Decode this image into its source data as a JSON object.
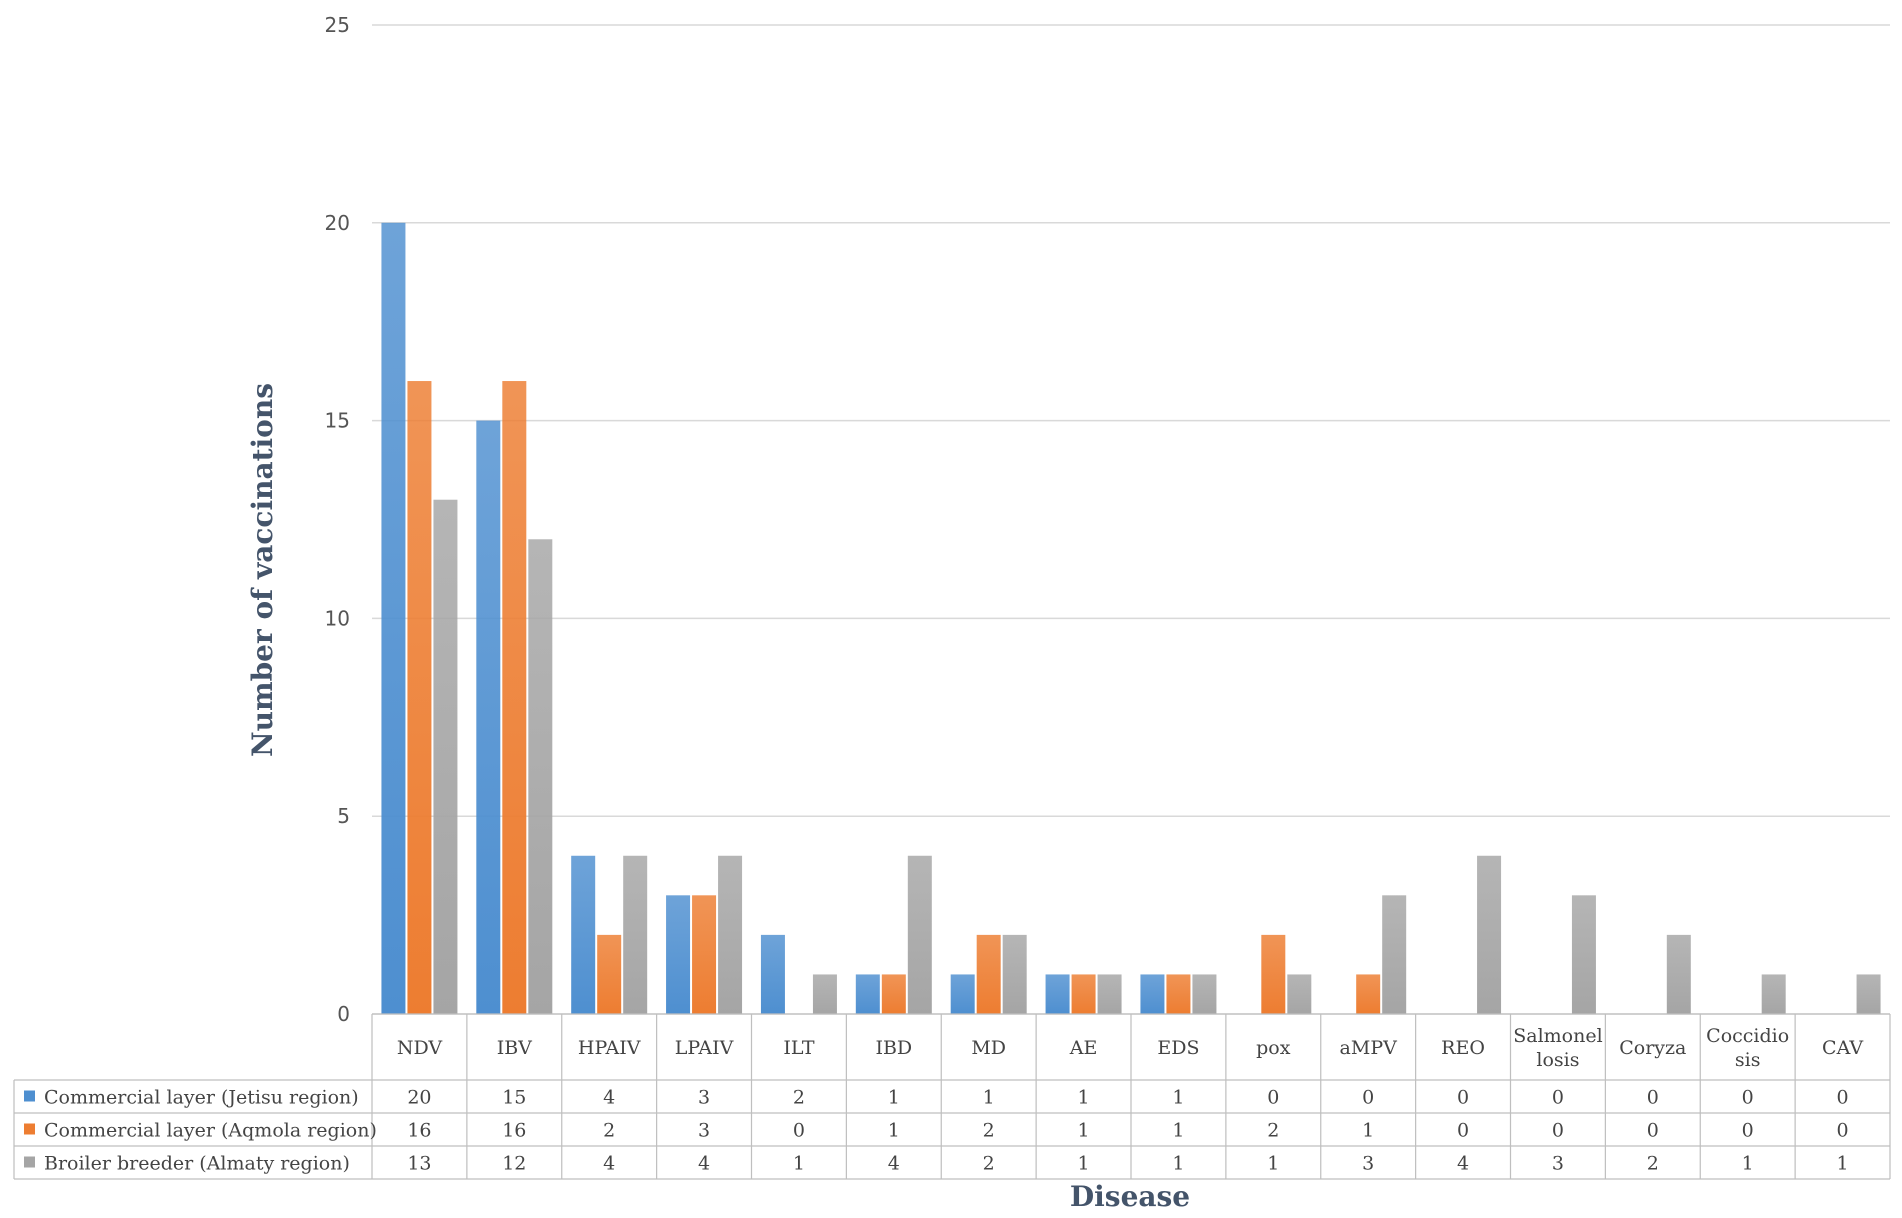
{
  "chart_data": {
    "type": "bar",
    "xlabel": "Disease",
    "ylabel": "Number of vaccinations",
    "ylim": [
      0,
      25
    ],
    "yticks": [
      0,
      5,
      10,
      15,
      20,
      25
    ],
    "grid": true,
    "legend_placement": "data-table-left",
    "categories": [
      "NDV",
      "IBV",
      "HPAIV",
      "LPAIV",
      "ILT",
      "IBD",
      "MD",
      "AE",
      "EDS",
      "pox",
      "aMPV",
      "REO",
      "Salmonel losis",
      "Coryza",
      "Coccidio sis",
      "CAV"
    ],
    "category_lines": [
      [
        "NDV"
      ],
      [
        "IBV"
      ],
      [
        "HPAIV"
      ],
      [
        "LPAIV"
      ],
      [
        "ILT"
      ],
      [
        "IBD"
      ],
      [
        "MD"
      ],
      [
        "AE"
      ],
      [
        "EDS"
      ],
      [
        "pox"
      ],
      [
        "aMPV"
      ],
      [
        "REO"
      ],
      [
        "Salmonel",
        "losis"
      ],
      [
        "Coryza"
      ],
      [
        "Coccidio",
        "sis"
      ],
      [
        "CAV"
      ]
    ],
    "series": [
      {
        "name": "Commercial layer (Jetisu region)",
        "color": "#4e8fd0",
        "values": [
          20,
          15,
          4,
          3,
          2,
          1,
          1,
          1,
          1,
          0,
          0,
          0,
          0,
          0,
          0,
          0
        ]
      },
      {
        "name": "Commercial layer (Aqmola region)",
        "color": "#ed7d31",
        "values": [
          16,
          16,
          2,
          3,
          0,
          1,
          2,
          1,
          1,
          2,
          1,
          0,
          0,
          0,
          0,
          0
        ]
      },
      {
        "name": "Broiler breeder (Almaty region)",
        "color": "#a5a5a5",
        "values": [
          13,
          12,
          4,
          4,
          1,
          4,
          2,
          1,
          1,
          1,
          3,
          4,
          3,
          2,
          1,
          1
        ]
      }
    ]
  }
}
